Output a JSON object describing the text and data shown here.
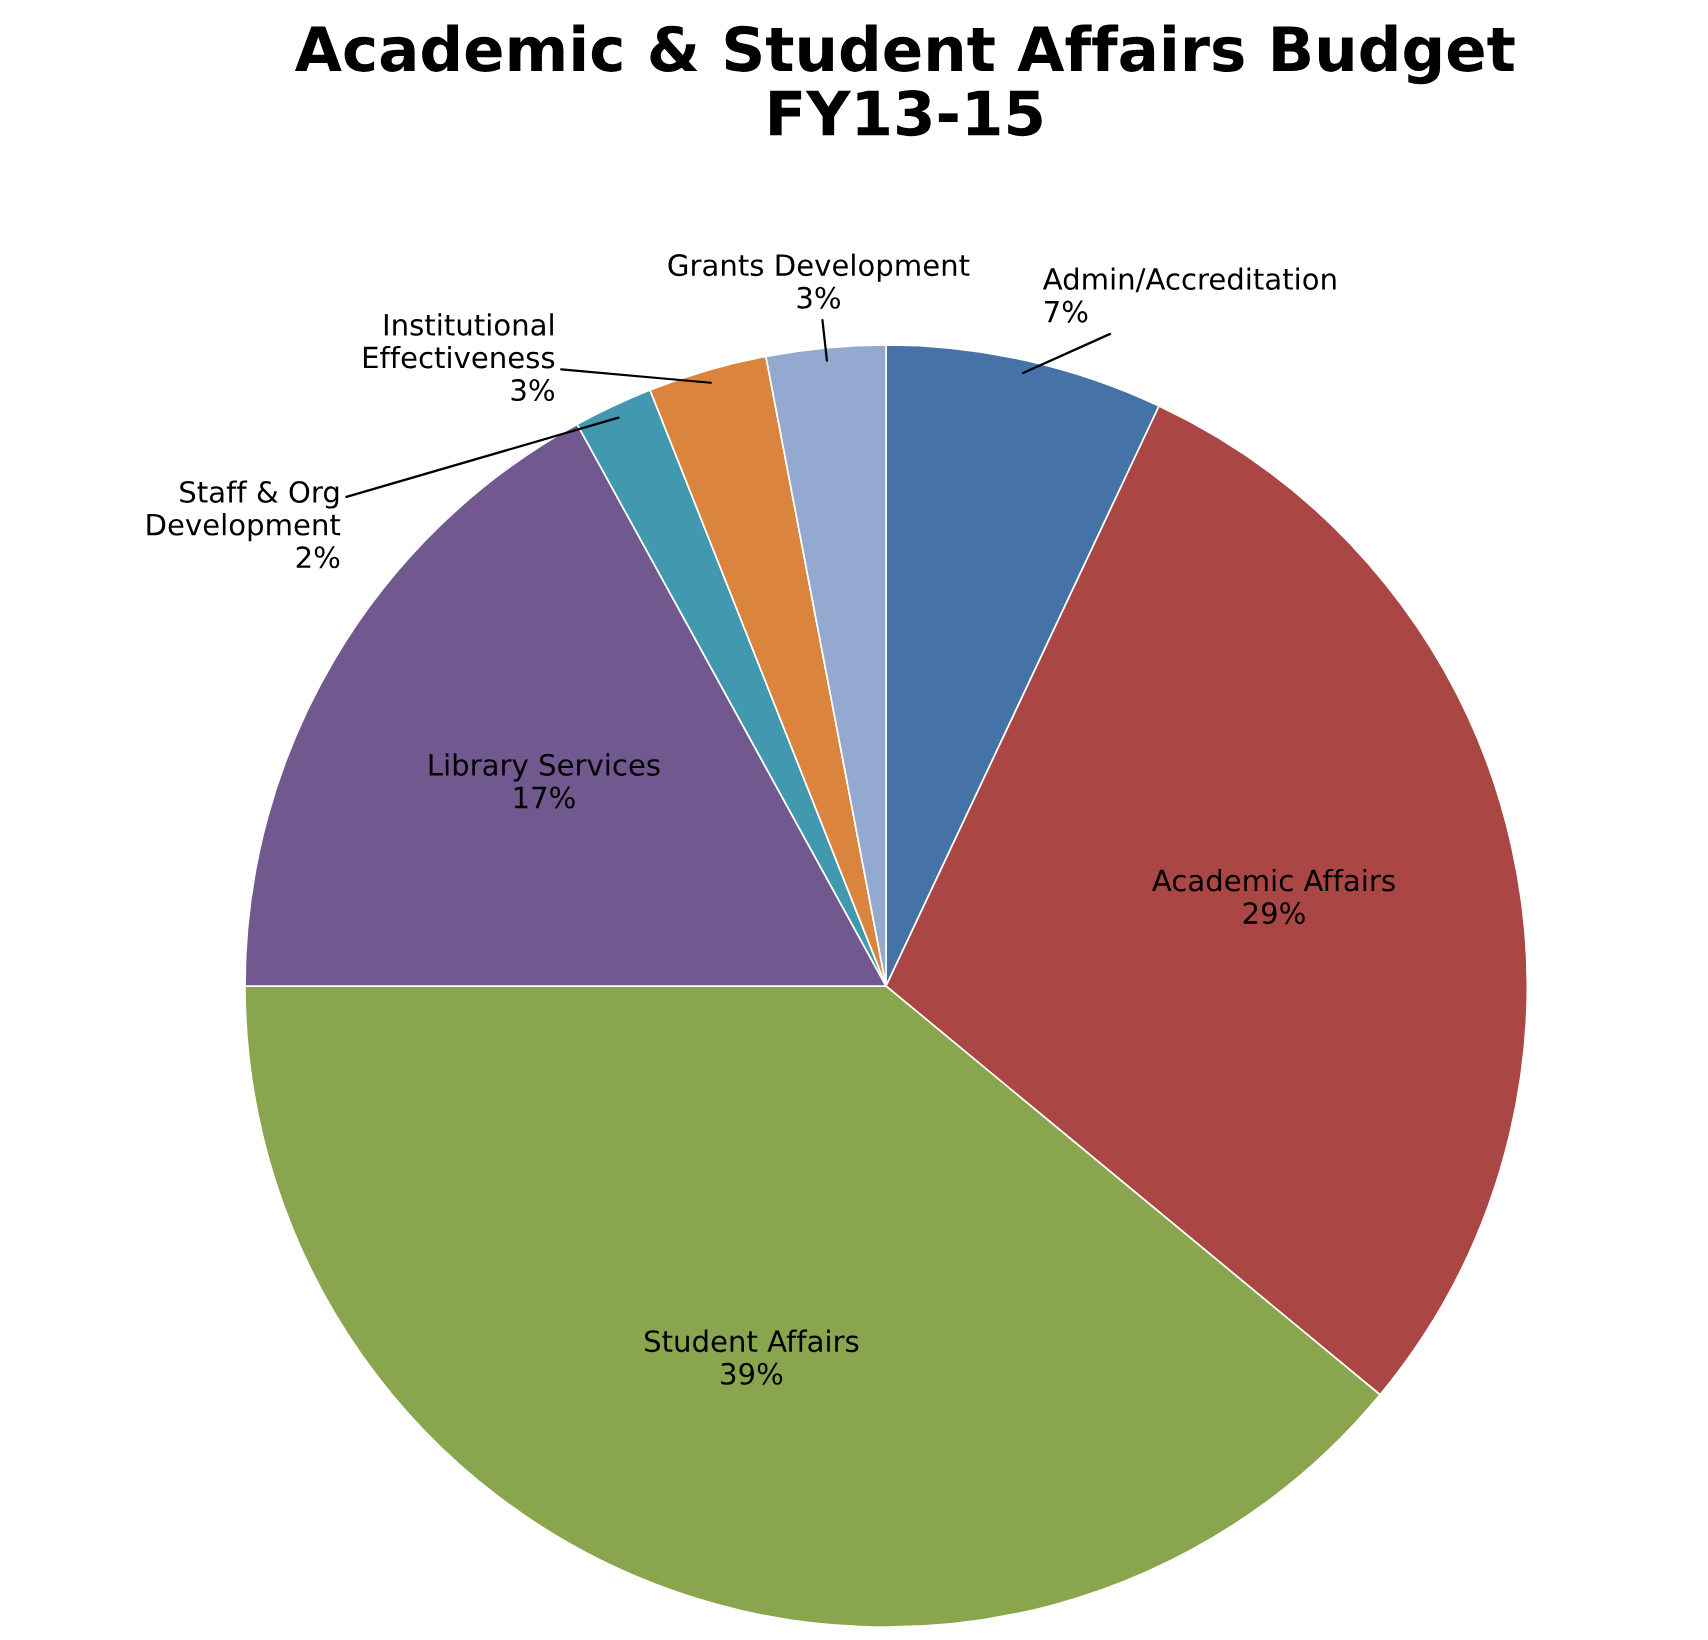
{
  "chart_data": {
    "type": "pie",
    "title": "Academic & Student Affairs Budget\nFY13-15",
    "categories": [
      "Admin/Accreditation",
      "Academic Affairs",
      "Student Affairs",
      "Library Services",
      "Staff & Org\nDevelopment",
      "Institutional\nEffectiveness",
      "Grants Development"
    ],
    "values": [
      7,
      29,
      39,
      17,
      2,
      3,
      3
    ],
    "colors": [
      "#4572a7",
      "#aa4643",
      "#89a54e",
      "#71588f",
      "#4198af",
      "#db843d",
      "#93a9cf"
    ],
    "value_labels": [
      "7%",
      "29%",
      "39%",
      "17%",
      "2%",
      "3%",
      "3%"
    ],
    "legend": false
  }
}
